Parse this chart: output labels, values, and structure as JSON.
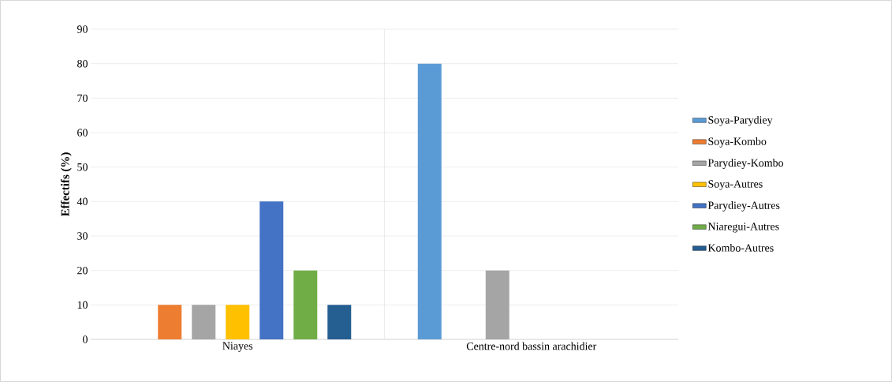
{
  "chart_data": {
    "type": "bar",
    "ylabel": "Effectifs (%)",
    "categories": [
      "Niayes",
      "Centre-nord bassin arachidier"
    ],
    "series": [
      {
        "name": "Soya-Parydiey",
        "color": "#5b9bd5",
        "values": [
          0,
          80
        ]
      },
      {
        "name": "Soya-Kombo",
        "color": "#ed7d31",
        "values": [
          10,
          0
        ]
      },
      {
        "name": "Parydiey-Kombo",
        "color": "#a5a5a5",
        "values": [
          10,
          20
        ]
      },
      {
        "name": "Soya-Autres",
        "color": "#ffc000",
        "values": [
          10,
          0
        ]
      },
      {
        "name": "Parydiey-Autres",
        "color": "#4472c4",
        "values": [
          40,
          0
        ]
      },
      {
        "name": "Niaregui-Autres",
        "color": "#70ad47",
        "values": [
          20,
          0
        ]
      },
      {
        "name": "Kombo-Autres",
        "color": "#255e91",
        "values": [
          10,
          0
        ]
      }
    ],
    "ylim": [
      0,
      90
    ],
    "yticks": [
      0,
      10,
      20,
      30,
      40,
      50,
      60,
      70,
      80,
      90
    ],
    "grid": true,
    "legend": "right"
  }
}
